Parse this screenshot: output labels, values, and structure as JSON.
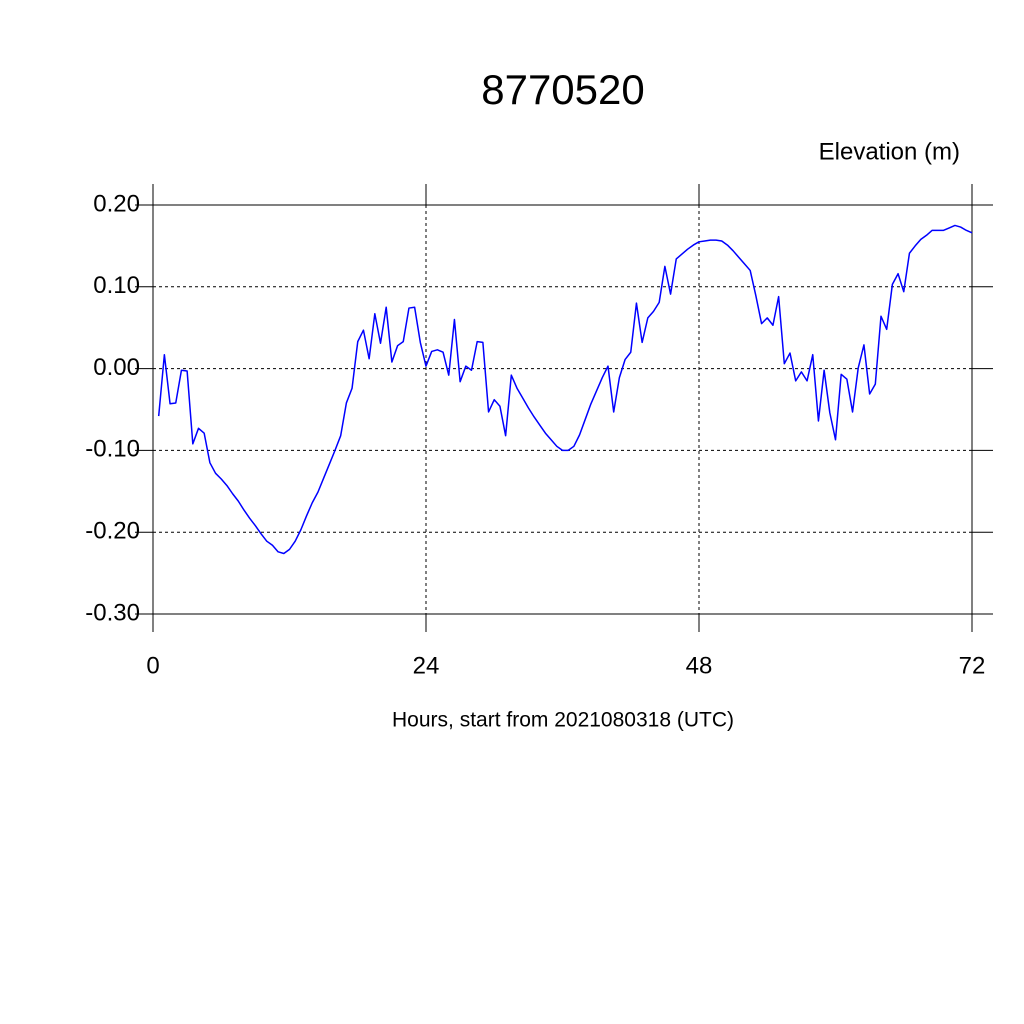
{
  "chart_data": {
    "type": "line",
    "title": "8770520",
    "y_label": "Elevation (m)",
    "x_label": "Hours, start from 2021080318 (UTC)",
    "x": [
      0.5,
      1,
      1.5,
      2,
      2.5,
      3,
      3.5,
      4,
      4.5,
      5,
      5.5,
      6,
      6.5,
      7,
      7.5,
      8,
      8.5,
      9,
      9.5,
      10,
      10.5,
      11,
      11.5,
      12,
      12.5,
      13,
      13.5,
      14,
      14.5,
      15,
      15.5,
      16,
      16.5,
      17,
      17.5,
      18,
      18.5,
      19,
      19.5,
      20,
      20.5,
      21,
      21.5,
      22,
      22.5,
      23,
      23.5,
      24,
      24.5,
      25,
      25.5,
      26,
      26.5,
      27,
      27.5,
      28,
      28.5,
      29,
      29.5,
      30,
      30.5,
      31,
      31.5,
      32,
      32.5,
      33,
      33.5,
      34,
      34.5,
      35,
      35.5,
      36,
      36.5,
      37,
      37.5,
      38,
      38.5,
      39,
      39.5,
      40,
      40.5,
      41,
      41.5,
      42,
      42.5,
      43,
      43.5,
      44,
      44.5,
      45,
      45.5,
      46,
      46.5,
      47,
      47.5,
      48,
      48.5,
      49,
      49.5,
      50,
      50.5,
      51,
      51.5,
      52,
      52.5,
      53,
      53.5,
      54,
      54.5,
      55,
      55.5,
      56,
      56.5,
      57,
      57.5,
      58,
      58.5,
      59,
      59.5,
      60,
      60.5,
      61,
      61.5,
      62,
      62.5,
      63,
      63.5,
      64,
      64.5,
      65,
      65.5,
      66,
      66.5,
      67,
      67.5,
      68,
      68.5,
      69,
      69.5,
      70,
      70.5,
      71,
      71.5,
      72
    ],
    "series": [
      {
        "color": "#0000ff",
        "values": [
          -0.058,
          0.017,
          -0.043,
          -0.042,
          -0.002,
          -0.003,
          -0.092,
          -0.073,
          -0.079,
          -0.115,
          -0.128,
          -0.135,
          -0.143,
          -0.153,
          -0.162,
          -0.173,
          -0.183,
          -0.192,
          -0.202,
          -0.211,
          -0.216,
          -0.224,
          -0.226,
          -0.221,
          -0.211,
          -0.197,
          -0.18,
          -0.164,
          -0.151,
          -0.134,
          -0.117,
          -0.1,
          -0.082,
          -0.042,
          -0.024,
          0.033,
          0.047,
          0.012,
          0.067,
          0.031,
          0.075,
          0.008,
          0.028,
          0.033,
          0.074,
          0.075,
          0.032,
          0.003,
          0.021,
          0.023,
          0.02,
          -0.008,
          0.06,
          -0.016,
          0.003,
          -0.002,
          0.033,
          0.032,
          -0.053,
          -0.038,
          -0.046,
          -0.082,
          -0.008,
          -0.024,
          -0.036,
          -0.048,
          -0.059,
          -0.069,
          -0.079,
          -0.087,
          -0.095,
          -0.1,
          -0.1,
          -0.095,
          -0.081,
          -0.062,
          -0.043,
          -0.027,
          -0.011,
          0.003,
          -0.053,
          -0.011,
          0.011,
          0.02,
          0.08,
          0.032,
          0.062,
          0.07,
          0.081,
          0.125,
          0.091,
          0.134,
          0.14,
          0.146,
          0.151,
          0.155,
          0.156,
          0.157,
          0.157,
          0.156,
          0.151,
          0.144,
          0.136,
          0.128,
          0.12,
          0.089,
          0.055,
          0.062,
          0.053,
          0.088,
          0.006,
          0.019,
          -0.015,
          -0.004,
          -0.015,
          0.017,
          -0.064,
          -0.002,
          -0.054,
          -0.087,
          -0.007,
          -0.013,
          -0.053,
          0.001,
          0.029,
          -0.031,
          -0.019,
          0.064,
          0.048,
          0.103,
          0.116,
          0.094,
          0.141,
          0.15,
          0.158,
          0.163,
          0.169,
          0.169,
          0.169,
          0.172,
          0.175,
          0.173,
          0.169,
          0.166
        ]
      }
    ],
    "xlim": [
      0,
      72
    ],
    "xticks": [
      0,
      24,
      48,
      72
    ],
    "ylim": [
      -0.3,
      0.2
    ],
    "yticks": [
      {
        "value": 0.2,
        "label": "0.20"
      },
      {
        "value": 0.1,
        "label": "0.10"
      },
      {
        "value": 0,
        "label": "0.00"
      },
      {
        "value": -0.1,
        "label": "-0.10"
      },
      {
        "value": -0.2,
        "label": "-0.20"
      },
      {
        "value": -0.3,
        "label": "-0.30"
      }
    ],
    "grid": true
  }
}
